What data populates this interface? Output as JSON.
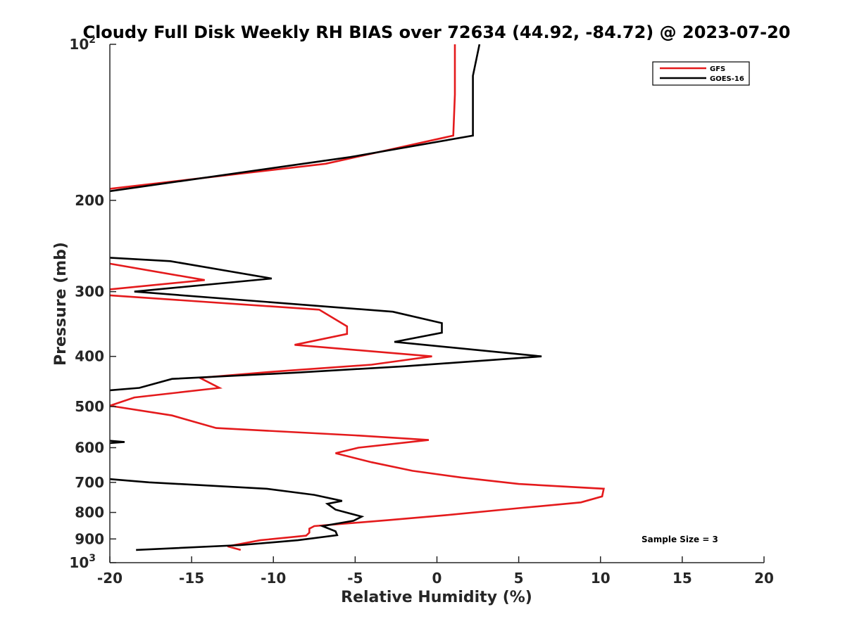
{
  "chart_data": {
    "type": "line",
    "title": "Cloudy Full Disk Weekly RH BIAS over 72634 (44.92, -84.72) @ 2023-07-20",
    "xlabel": "Relative Humidity (%)",
    "ylabel": "Pressure (mb)",
    "xlim": [
      -20,
      20
    ],
    "ylim": [
      100,
      1000
    ],
    "y_scale": "log",
    "y_reversed": true,
    "grid": false,
    "legend_position": "top-right",
    "x_ticks": [
      {
        "value": -20,
        "label": "-20"
      },
      {
        "value": -15,
        "label": "-15"
      },
      {
        "value": -10,
        "label": "-10"
      },
      {
        "value": -5,
        "label": "-5"
      },
      {
        "value": 0,
        "label": "0"
      },
      {
        "value": 5,
        "label": "5"
      },
      {
        "value": 10,
        "label": "10"
      },
      {
        "value": 15,
        "label": "15"
      },
      {
        "value": 20,
        "label": "20"
      }
    ],
    "y_ticks": [
      {
        "value": 100,
        "label": "10",
        "sup": "2"
      },
      {
        "value": 200,
        "label": "200",
        "sup": ""
      },
      {
        "value": 300,
        "label": "300",
        "sup": ""
      },
      {
        "value": 400,
        "label": "400",
        "sup": ""
      },
      {
        "value": 500,
        "label": "500",
        "sup": ""
      },
      {
        "value": 600,
        "label": "600",
        "sup": ""
      },
      {
        "value": 700,
        "label": "700",
        "sup": ""
      },
      {
        "value": 800,
        "label": "800",
        "sup": ""
      },
      {
        "value": 900,
        "label": "900",
        "sup": ""
      },
      {
        "value": 1000,
        "label": "10",
        "sup": "3"
      }
    ],
    "series": [
      {
        "name": "GFS",
        "color": "#e41a1c",
        "segments": [
          [
            [
              1.1,
              100
            ],
            [
              1.1,
              125
            ],
            [
              1.0,
              150
            ],
            [
              -6.8,
              170
            ],
            [
              -20,
              190
            ]
          ],
          [
            [
              -20,
              265
            ],
            [
              -14.2,
              285
            ],
            [
              -20,
              297
            ]
          ],
          [
            [
              -20,
              305
            ],
            [
              -7.2,
              325
            ],
            [
              -5.5,
              350
            ],
            [
              -5.5,
              362
            ],
            [
              -8.7,
              380
            ],
            [
              -0.3,
              400
            ],
            [
              -4,
              415
            ],
            [
              -10,
              428
            ],
            [
              -14.5,
              440
            ],
            [
              -13.3,
              460
            ],
            [
              -18.5,
              480
            ],
            [
              -20,
              498
            ],
            [
              -16.2,
              520
            ],
            [
              -13.5,
              550
            ],
            [
              -5,
              568
            ],
            [
              -0.5,
              580
            ],
            [
              -4.8,
              600
            ],
            [
              -6.2,
              615
            ],
            [
              -4,
              640
            ],
            [
              -1.5,
              665
            ],
            [
              1.5,
              685
            ],
            [
              5,
              705
            ],
            [
              10.2,
              720
            ],
            [
              10.1,
              745
            ],
            [
              8.8,
              765
            ],
            [
              5,
              785
            ],
            [
              0.5,
              810
            ],
            [
              -3,
              828
            ],
            [
              -7.5,
              850
            ],
            [
              -7.8,
              860
            ],
            [
              -7.8,
              875
            ],
            [
              -8,
              887
            ],
            [
              -10.8,
              905
            ],
            [
              -12.8,
              930
            ],
            [
              -12,
              945
            ]
          ]
        ]
      },
      {
        "name": "GOES-16",
        "color": "#000000",
        "segments": [
          [
            [
              2.6,
              100
            ],
            [
              2.2,
              115
            ],
            [
              2.2,
              150
            ],
            [
              -5.3,
              165
            ],
            [
              -20,
              192
            ]
          ],
          [
            [
              -20,
              258
            ],
            [
              -16.3,
              262
            ],
            [
              -10.1,
              283
            ],
            [
              -18.5,
              300
            ],
            [
              -2.7,
              328
            ],
            [
              0.3,
              345
            ],
            [
              0.3,
              360
            ],
            [
              -2.6,
              375
            ],
            [
              6.4,
              400
            ],
            [
              -2,
              418
            ],
            [
              -8.7,
              430
            ],
            [
              -16.2,
              442
            ],
            [
              -18.2,
              460
            ],
            [
              -20,
              465
            ]
          ],
          [
            [
              -20,
              582
            ],
            [
              -19.1,
              585
            ],
            [
              -20,
              588
            ]
          ],
          [
            [
              -20,
              690
            ],
            [
              -17.6,
              700
            ],
            [
              -10.4,
              720
            ],
            [
              -7.5,
              740
            ],
            [
              -5.8,
              760
            ],
            [
              -6.7,
              770
            ],
            [
              -6.2,
              790
            ],
            [
              -4.6,
              815
            ],
            [
              -5.1,
              830
            ],
            [
              -7,
              850
            ],
            [
              -6.2,
              870
            ],
            [
              -6.1,
              885
            ],
            [
              -8.5,
              905
            ],
            [
              -12,
              925
            ],
            [
              -18.4,
              945
            ]
          ]
        ]
      }
    ],
    "annotation": "Sample Size = 3"
  }
}
